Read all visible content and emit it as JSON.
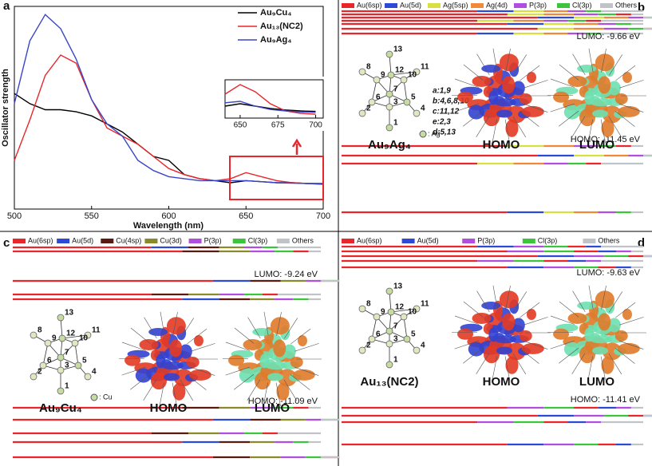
{
  "chart_data": [
    {
      "type": "line",
      "label": "a",
      "xlabel": "Wavelength (nm)",
      "ylabel": "Oscillator strength",
      "x": [
        500,
        510,
        520,
        530,
        540,
        550,
        560,
        570,
        580,
        590,
        600,
        610,
        620,
        630,
        640,
        650,
        660,
        670,
        680,
        690,
        700
      ],
      "xlim": [
        500,
        700
      ],
      "xticks": [
        500,
        550,
        600,
        650,
        700
      ],
      "ylim": [
        0,
        1
      ],
      "yticks": [],
      "series": [
        {
          "name": "Au₉Cu₄",
          "color": "#000000",
          "values": [
            0.57,
            0.52,
            0.49,
            0.49,
            0.48,
            0.46,
            0.42,
            0.38,
            0.32,
            0.26,
            0.24,
            0.17,
            0.15,
            0.14,
            0.13,
            0.14,
            0.135,
            0.13,
            0.13,
            0.126,
            0.126
          ]
        },
        {
          "name": "Au₁₃(NC2)",
          "color": "#e8262b",
          "values": [
            0.24,
            0.44,
            0.66,
            0.76,
            0.72,
            0.54,
            0.4,
            0.36,
            0.32,
            0.26,
            0.2,
            0.17,
            0.15,
            0.14,
            0.15,
            0.18,
            0.16,
            0.14,
            0.13,
            0.126,
            0.126
          ]
        },
        {
          "name": "Au₉Ag₄",
          "color": "#3a46c8",
          "values": [
            0.52,
            0.83,
            0.96,
            0.89,
            0.74,
            0.54,
            0.42,
            0.36,
            0.24,
            0.19,
            0.16,
            0.15,
            0.14,
            0.14,
            0.14,
            0.14,
            0.135,
            0.13,
            0.128,
            0.126,
            0.122
          ]
        }
      ]
    },
    {
      "type": "line",
      "x": [
        640,
        650,
        660,
        670,
        680,
        690,
        700
      ],
      "xlim": [
        640,
        705
      ],
      "xticks": [
        650,
        675,
        700
      ],
      "ylim": [
        0.12,
        0.2
      ],
      "yticks": [],
      "series": [
        {
          "color": "#000000",
          "values": [
            0.145,
            0.15,
            0.145,
            0.14,
            0.137,
            0.135,
            0.134
          ]
        },
        {
          "color": "#e8262b",
          "values": [
            0.17,
            0.19,
            0.175,
            0.15,
            0.135,
            0.13,
            0.128
          ]
        },
        {
          "color": "#3a46c8",
          "values": [
            0.152,
            0.155,
            0.145,
            0.138,
            0.135,
            0.133,
            0.132
          ]
        }
      ]
    }
  ],
  "panels": [
    {
      "label": "b",
      "legend": [
        {
          "name": "Au(6sp)",
          "color": "#e8262b"
        },
        {
          "name": "Au(5d)",
          "color": "#2b4bd6"
        },
        {
          "name": "Ag(5sp)",
          "color": "#d8e040"
        },
        {
          "name": "Ag(4d)",
          "color": "#f08a3a"
        },
        {
          "name": "P(3p)",
          "color": "#b04ee0"
        },
        {
          "name": "Cl(3p)",
          "color": "#3cc43c"
        },
        {
          "name": "Others",
          "color": "#c0c4c8"
        }
      ],
      "lumo": "LUMO: -9.66 eV",
      "homo": "HOMO: -11.45 eV",
      "cluster": "Au₉Ag₄",
      "homo_label": "HOMO",
      "lumo_label": "LUMO",
      "atoms": [
        "13",
        "8",
        "9",
        "12",
        "11",
        "10",
        "7",
        "6",
        "3",
        "5",
        "2",
        "4",
        "1"
      ],
      "metal_key": ": Ag",
      "notes": [
        "a:1,9",
        "b:4,6,8,10",
        "c:11,12",
        "e:2,3",
        "d:5,13"
      ]
    },
    {
      "label": "c",
      "legend": [
        {
          "name": "Au(6sp)",
          "color": "#e8262b"
        },
        {
          "name": "Au(5d)",
          "color": "#2b4bd6"
        },
        {
          "name": "Cu(4sp)",
          "color": "#5a1a10"
        },
        {
          "name": "Cu(3d)",
          "color": "#8a8a2a"
        },
        {
          "name": "P(3p)",
          "color": "#b04ee0"
        },
        {
          "name": "Cl(3p)",
          "color": "#3cc43c"
        },
        {
          "name": "Others",
          "color": "#c0c4c8"
        }
      ],
      "lumo": "LUMO: -9.24 eV",
      "homo": "HOMO: -11.09 eV",
      "cluster": "Au₉Cu₄",
      "homo_label": "HOMO",
      "lumo_label": "LUMO",
      "atoms": [
        "13",
        "8",
        "9",
        "12",
        "11",
        "10",
        "7",
        "6",
        "3",
        "5",
        "2",
        "4",
        "1"
      ],
      "metal_key": ": Cu"
    },
    {
      "label": "d",
      "legend": [
        {
          "name": "Au(6sp)",
          "color": "#e8262b"
        },
        {
          "name": "Au(5d)",
          "color": "#2b4bd6"
        },
        {
          "name": "P(3p)",
          "color": "#b04ee0"
        },
        {
          "name": "Cl(3p)",
          "color": "#3cc43c"
        },
        {
          "name": "Others",
          "color": "#c0c4c8"
        }
      ],
      "lumo": "LUMO: -9.63 eV",
      "homo": "HOMO: -11.41 eV",
      "cluster": "Au₁₃(NC2)",
      "homo_label": "HOMO",
      "lumo_label": "LUMO",
      "atoms": [
        "13",
        "8",
        "9",
        "12",
        "11",
        "10",
        "7",
        "6",
        "3",
        "5",
        "2",
        "4",
        "1"
      ]
    }
  ]
}
